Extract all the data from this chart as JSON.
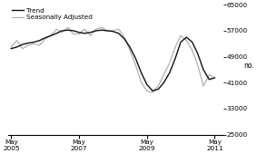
{
  "ylabel": "no.",
  "ylim": [
    25000,
    65000
  ],
  "yticks": [
    25000,
    33000,
    41000,
    49000,
    57000,
    65000
  ],
  "xlim_start": 2005.25,
  "xlim_end": 2011.58,
  "xtick_positions": [
    2005.33,
    2007.33,
    2009.33,
    2011.33
  ],
  "xtick_labels": [
    "May\n2005",
    "May\n2007",
    "May\n2009",
    "May\n2011"
  ],
  "legend_entries": [
    "Trend",
    "Seasonally Adjusted"
  ],
  "trend_color": "#111111",
  "sa_color": "#b0b0b0",
  "trend_linewidth": 1.0,
  "sa_linewidth": 0.9,
  "background_color": "#ffffff",
  "trend_x": [
    2005.33,
    2005.5,
    2005.67,
    2005.83,
    2006.0,
    2006.17,
    2006.33,
    2006.5,
    2006.67,
    2006.83,
    2007.0,
    2007.17,
    2007.33,
    2007.5,
    2007.67,
    2007.83,
    2008.0,
    2008.17,
    2008.33,
    2008.5,
    2008.67,
    2008.83,
    2009.0,
    2009.17,
    2009.33,
    2009.5,
    2009.67,
    2009.83,
    2010.0,
    2010.17,
    2010.33,
    2010.5,
    2010.67,
    2010.83,
    2011.0,
    2011.17,
    2011.33
  ],
  "trend_y": [
    51500,
    52000,
    52800,
    53200,
    53500,
    54000,
    54800,
    55500,
    56200,
    57000,
    57200,
    57000,
    56500,
    56200,
    56500,
    57000,
    57200,
    57000,
    56800,
    56200,
    54500,
    52000,
    48500,
    44000,
    40500,
    38500,
    39000,
    41000,
    44000,
    48500,
    53500,
    55000,
    53500,
    50000,
    45000,
    42000,
    42500
  ],
  "sa_x": [
    2005.33,
    2005.5,
    2005.67,
    2005.83,
    2006.0,
    2006.17,
    2006.33,
    2006.5,
    2006.67,
    2006.83,
    2007.0,
    2007.17,
    2007.33,
    2007.5,
    2007.67,
    2007.83,
    2008.0,
    2008.17,
    2008.33,
    2008.5,
    2008.67,
    2008.83,
    2009.0,
    2009.17,
    2009.33,
    2009.5,
    2009.67,
    2009.83,
    2010.0,
    2010.17,
    2010.33,
    2010.5,
    2010.67,
    2010.83,
    2011.0,
    2011.17,
    2011.33
  ],
  "sa_y": [
    52000,
    54000,
    51500,
    52500,
    53000,
    52500,
    54500,
    55500,
    57500,
    56500,
    58000,
    56000,
    56000,
    57500,
    55500,
    57500,
    58000,
    57000,
    57000,
    57500,
    55000,
    51000,
    46500,
    41000,
    38500,
    38000,
    40000,
    43500,
    47000,
    52000,
    55500,
    54000,
    51000,
    46500,
    40000,
    43500,
    42500
  ]
}
